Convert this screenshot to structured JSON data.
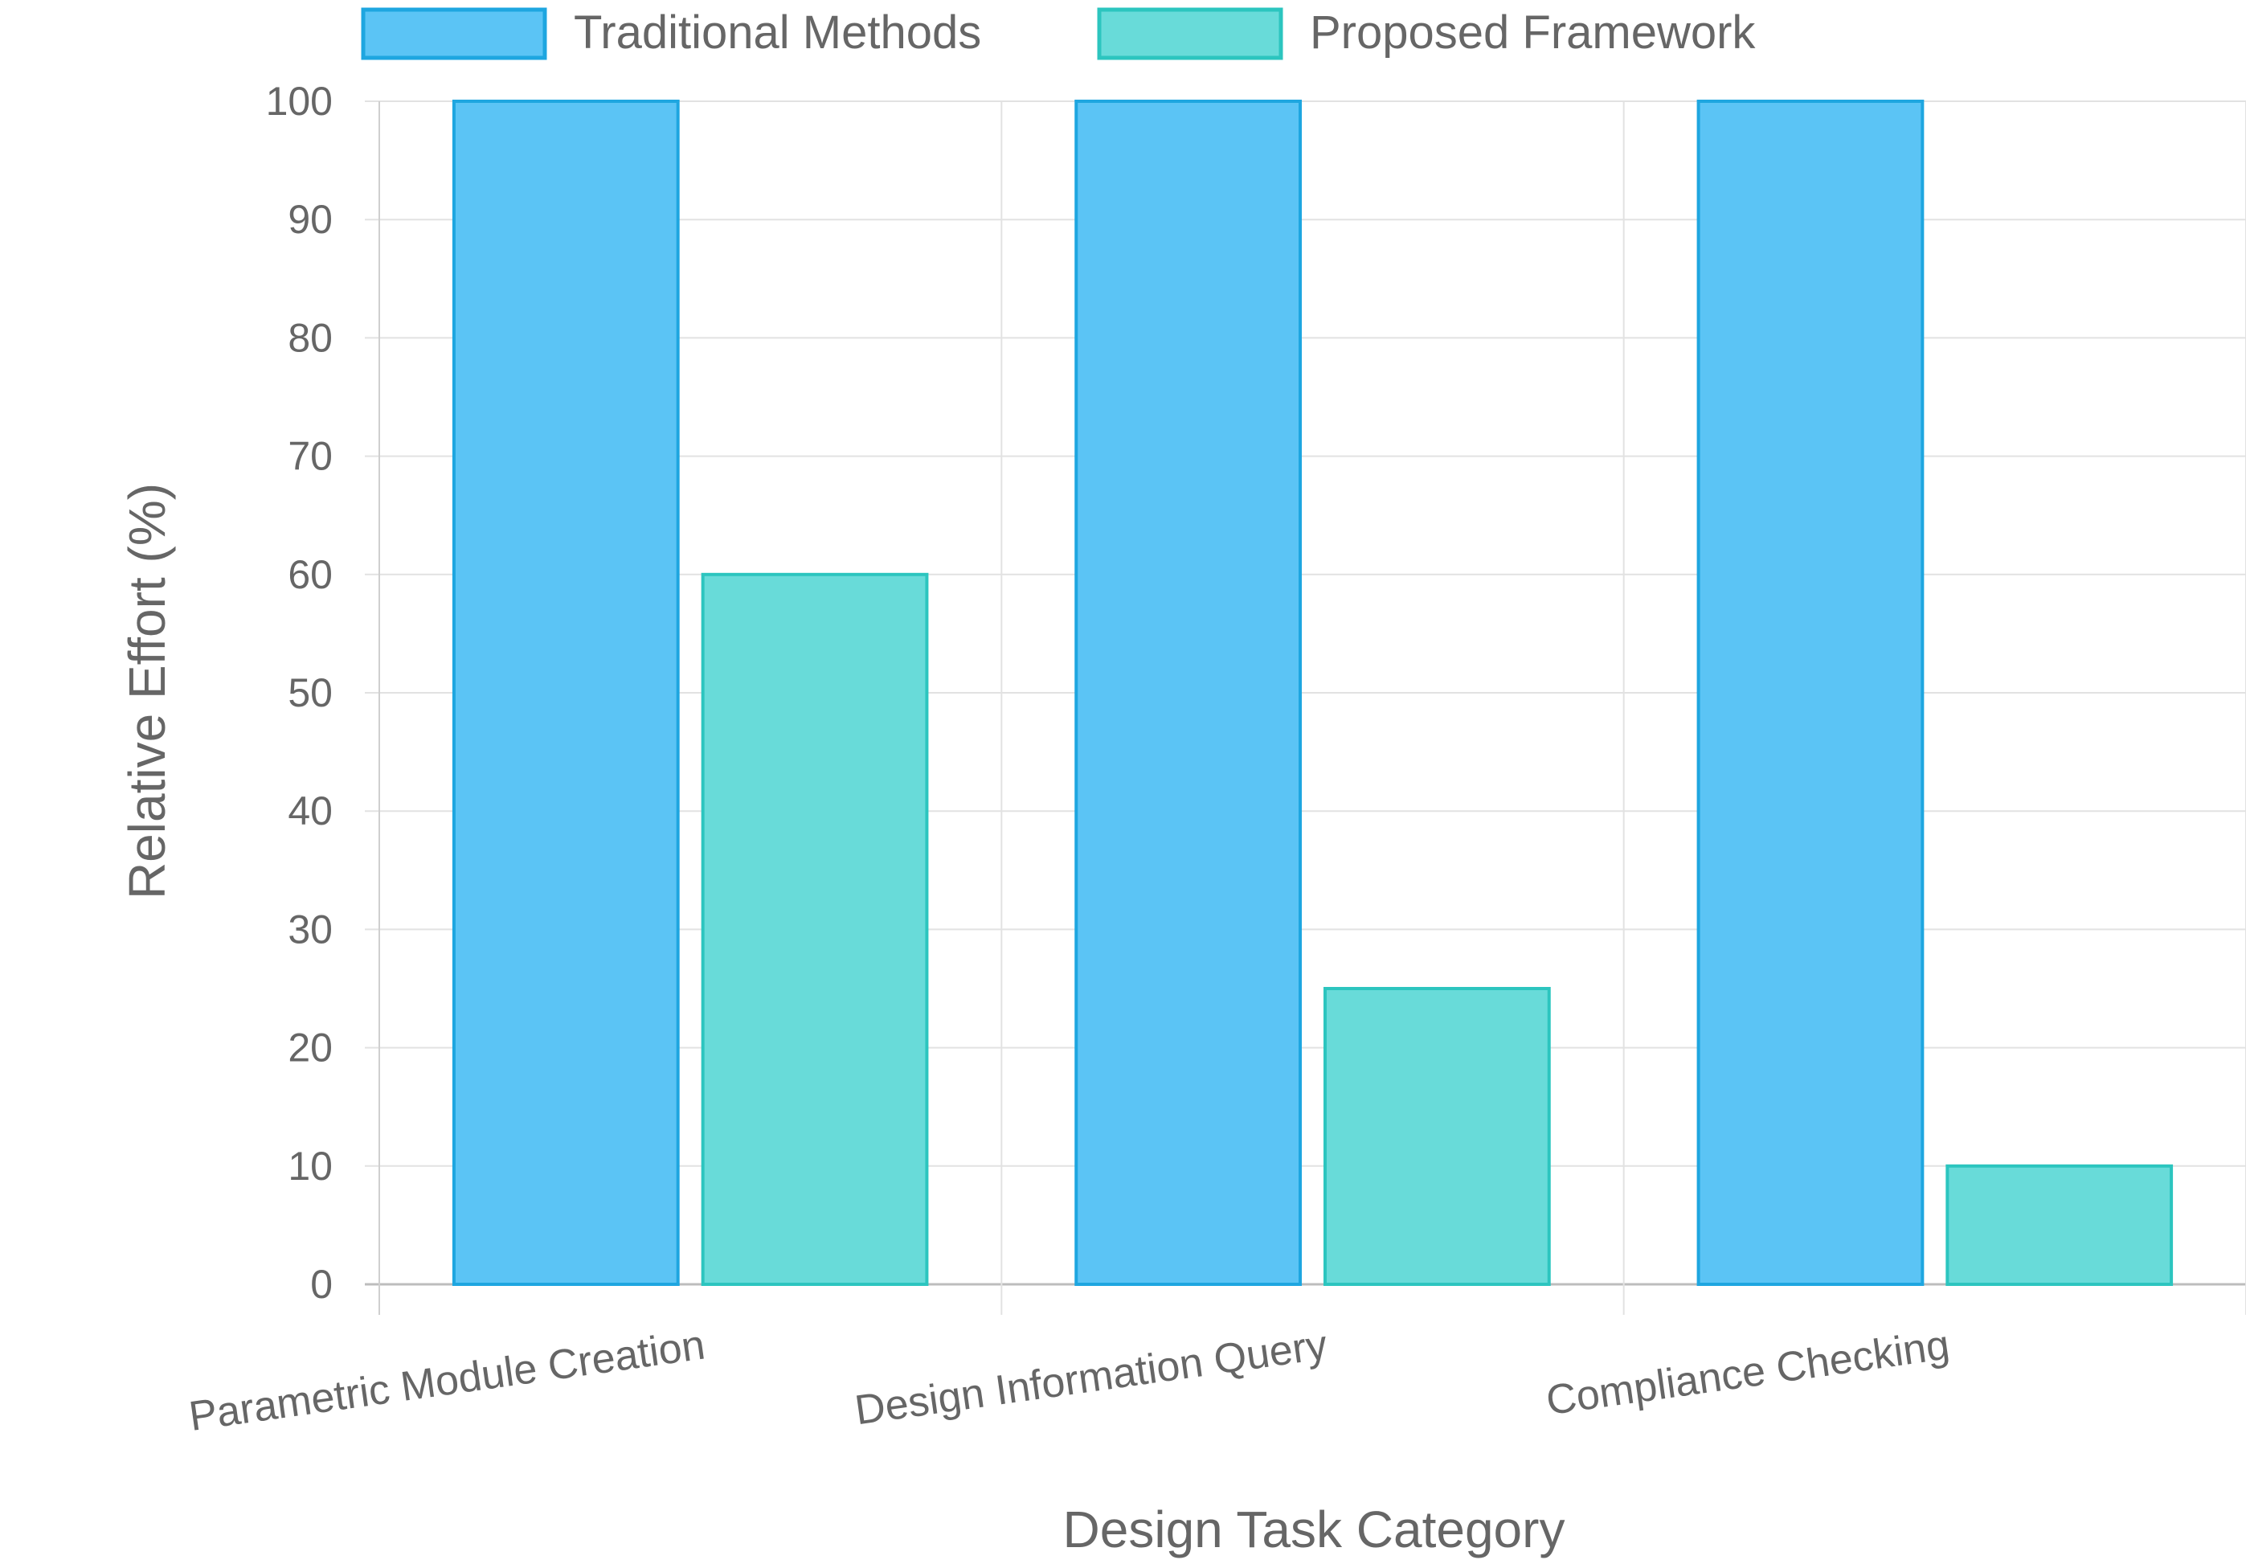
{
  "chart_data": {
    "type": "bar",
    "title": "",
    "xlabel": "Design Task Category",
    "ylabel": "Relative Effort (%)",
    "ylim": [
      0,
      100
    ],
    "yticks": [
      0,
      10,
      20,
      30,
      40,
      50,
      60,
      70,
      80,
      90,
      100
    ],
    "grid": true,
    "legend_position": "top",
    "categories": [
      "Parametric Module Creation",
      "Design Information Query",
      "Compliance Checking"
    ],
    "series": [
      {
        "name": "Traditional Methods",
        "values": [
          100,
          100,
          100
        ],
        "fill": "#5bc4f5",
        "stroke": "#1ea6e0"
      },
      {
        "name": "Proposed Framework",
        "values": [
          60,
          25,
          10
        ],
        "fill": "#68dbd9",
        "stroke": "#2cc5bf"
      }
    ]
  }
}
